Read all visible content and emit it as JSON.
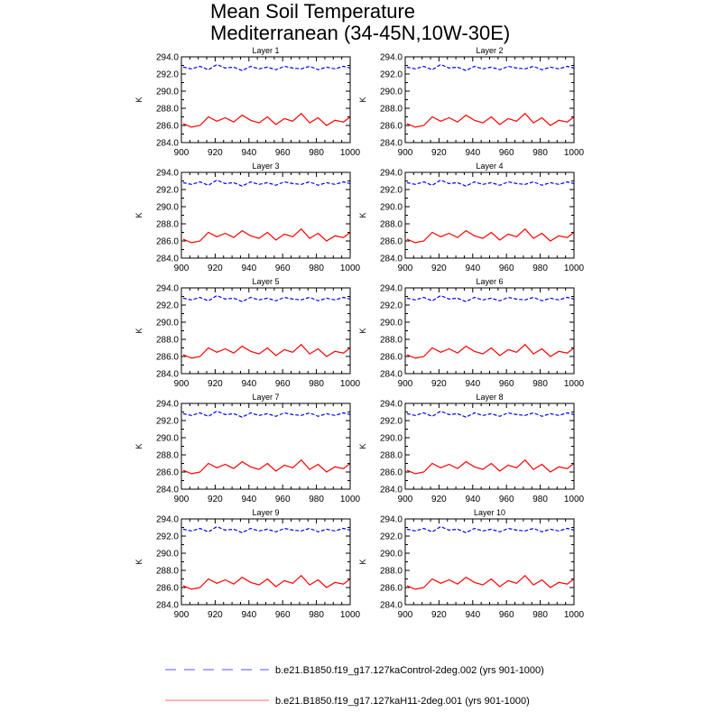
{
  "title": [
    "Mean Soil Temperature",
    "Mediterranean (34-45N,10W-30E)"
  ],
  "legend": [
    {
      "label": "b.e21.B1850.f19_g17.127kaControl-2deg.002 (yrs 901-1000)",
      "color": "#7777ff",
      "style": "dashed"
    },
    {
      "label": "b.e21.B1850.f19_g17.127kaH11-2deg.001 (yrs 901-1000)",
      "color": "#ff8888",
      "style": "solid"
    }
  ],
  "chart_data": {
    "type": "line",
    "layout": "5x2 panels",
    "ylabel": "K",
    "xlim": [
      900,
      1000
    ],
    "ylim": [
      284,
      294
    ],
    "xticks": [
      900,
      920,
      940,
      960,
      980,
      1000
    ],
    "yticks": [
      "284.0",
      "286.0",
      "288.0",
      "290.0",
      "292.0",
      "294.0"
    ],
    "series_colors": {
      "control": "#0000ff",
      "h11": "#ff0000"
    },
    "panels": [
      {
        "title": "Layer 1"
      },
      {
        "title": "Layer 2"
      },
      {
        "title": "Layer 3"
      },
      {
        "title": "Layer 4"
      },
      {
        "title": "Layer 5"
      },
      {
        "title": "Layer 6"
      },
      {
        "title": "Layer 7"
      },
      {
        "title": "Layer 8"
      },
      {
        "title": "Layer 9"
      },
      {
        "title": "Layer 10"
      }
    ],
    "series": [
      {
        "key": "control",
        "style": "dashed",
        "x": [
          901,
          906,
          911,
          916,
          921,
          926,
          931,
          936,
          941,
          946,
          951,
          956,
          961,
          966,
          971,
          976,
          981,
          986,
          991,
          996,
          1000
        ],
        "values": [
          292.8,
          292.6,
          292.9,
          292.5,
          293.1,
          292.7,
          292.8,
          292.4,
          292.9,
          292.6,
          292.8,
          292.5,
          292.9,
          292.7,
          292.6,
          292.9,
          292.5,
          292.8,
          292.6,
          292.9,
          292.7
        ]
      },
      {
        "key": "h11",
        "style": "solid",
        "x": [
          901,
          906,
          911,
          916,
          921,
          926,
          931,
          936,
          941,
          946,
          951,
          956,
          961,
          966,
          971,
          976,
          981,
          986,
          991,
          996,
          1000
        ],
        "values": [
          286.2,
          285.8,
          286.0,
          287.0,
          286.5,
          286.9,
          286.4,
          287.2,
          286.6,
          286.3,
          287.0,
          286.1,
          286.8,
          286.5,
          287.4,
          286.3,
          286.9,
          286.0,
          286.6,
          286.4,
          287.0
        ]
      }
    ]
  }
}
